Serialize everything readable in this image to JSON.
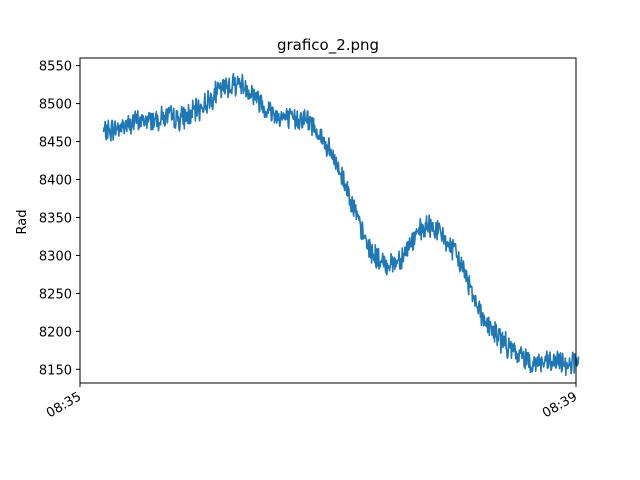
{
  "chart_data": {
    "type": "line",
    "title": "grafico_2.png",
    "xlabel": "",
    "ylabel": "Rad",
    "x_ticks": [
      "08:35",
      "08:39"
    ],
    "x_range_minutes": [
      0,
      4
    ],
    "y_ticks": [
      8150,
      8200,
      8250,
      8300,
      8350,
      8400,
      8450,
      8500,
      8550
    ],
    "ylim": [
      8132,
      8560
    ],
    "grid": false,
    "legend": "none",
    "line_color": "#1f77b4",
    "series": [
      {
        "x_minutes": [
          0.19,
          0.25,
          0.35,
          0.45,
          0.55,
          0.7,
          0.8,
          0.9,
          1.0,
          1.1,
          1.2,
          1.25,
          1.3,
          1.4,
          1.5,
          1.6,
          1.7,
          1.8,
          1.9,
          2.0,
          2.1,
          2.15,
          2.2,
          2.25,
          2.3,
          2.35,
          2.4,
          2.45,
          2.5,
          2.55,
          2.6,
          2.65,
          2.7,
          2.75,
          2.8,
          2.85,
          2.9,
          2.95,
          3.0,
          3.05,
          3.1,
          3.15,
          3.2,
          3.25,
          3.3,
          3.35,
          3.4,
          3.45,
          3.5,
          3.55,
          3.6,
          3.65,
          3.7,
          3.75,
          3.8,
          3.85,
          3.9,
          3.95,
          4.0,
          4.02
        ],
        "values": [
          8462,
          8465,
          8470,
          8476,
          8478,
          8483,
          8480,
          8486,
          8498,
          8515,
          8524,
          8527,
          8526,
          8512,
          8494,
          8484,
          8478,
          8482,
          8468,
          8440,
          8410,
          8390,
          8368,
          8340,
          8320,
          8305,
          8295,
          8288,
          8290,
          8292,
          8300,
          8312,
          8323,
          8332,
          8337,
          8338,
          8330,
          8320,
          8308,
          8296,
          8278,
          8258,
          8238,
          8218,
          8205,
          8198,
          8188,
          8180,
          8172,
          8168,
          8165,
          8158,
          8160,
          8158,
          8157,
          8160,
          8158,
          8159,
          8160,
          8158
        ]
      }
    ]
  }
}
